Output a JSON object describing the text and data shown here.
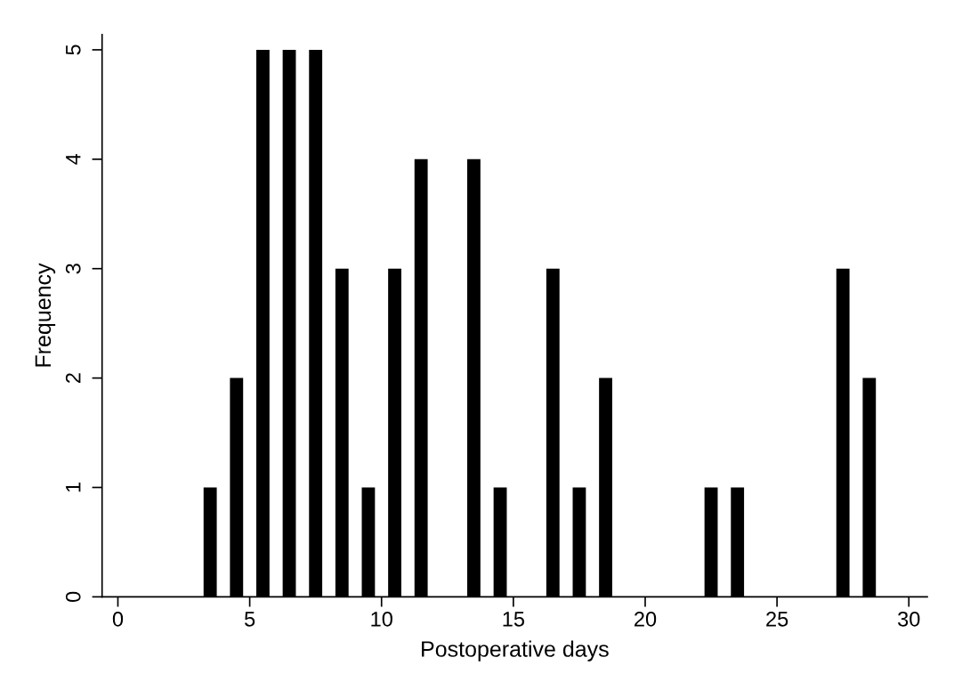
{
  "chart_data": {
    "type": "bar",
    "xlabel": "Postoperative days",
    "ylabel": "Frequency",
    "x": [
      3.5,
      4.5,
      5.5,
      6.5,
      7.5,
      8.5,
      9.5,
      10.5,
      11.5,
      13.5,
      14.5,
      16.5,
      17.5,
      18.5,
      22.5,
      23.5,
      27.5,
      28.5
    ],
    "values": [
      1,
      2,
      5,
      5,
      5,
      3,
      1,
      3,
      4,
      4,
      1,
      3,
      1,
      2,
      1,
      1,
      3,
      2
    ],
    "color": "#000000",
    "xlim": [
      -0.6,
      30.7
    ],
    "xticks": [
      0,
      5,
      10,
      15,
      20,
      25,
      30
    ],
    "ylim": [
      0,
      5.14
    ],
    "yticks": [
      0,
      1,
      2,
      3,
      4,
      5
    ],
    "grid": false
  }
}
